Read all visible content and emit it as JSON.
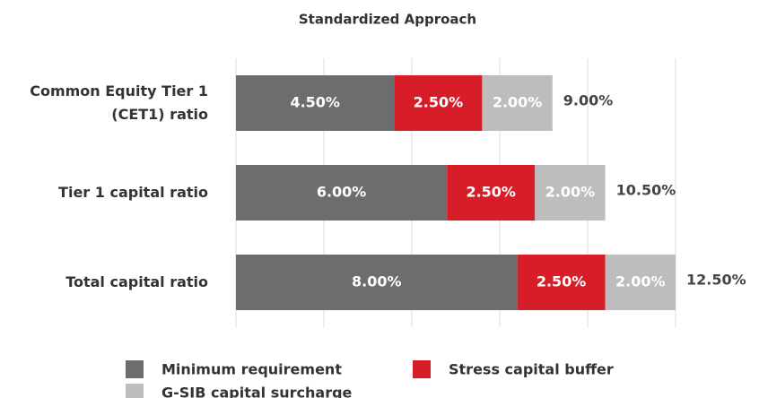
{
  "chart_data": {
    "type": "stacked-bar-horizontal",
    "title": "Standardized Approach",
    "categories": [
      "Common Equity Tier 1 (CET1) ratio",
      "Tier 1 capital ratio",
      "Total capital ratio"
    ],
    "series": [
      {
        "name": "Minimum requirement",
        "color": "#6d6d6d",
        "values": [
          4.5,
          6.0,
          8.0
        ],
        "value_labels": [
          "4.50%",
          "6.00%",
          "8.00%"
        ]
      },
      {
        "name": "Stress capital buffer",
        "color": "#d71e28",
        "values": [
          2.5,
          2.5,
          2.5
        ],
        "value_labels": [
          "2.50%",
          "2.50%",
          "2.50%"
        ]
      },
      {
        "name": "G-SIB capital surcharge",
        "color": "#bdbdbd",
        "values": [
          2.0,
          2.0,
          2.0
        ],
        "value_labels": [
          "2.00%",
          "2.00%",
          "2.00%"
        ]
      }
    ],
    "totals": [
      9.0,
      10.5,
      12.5
    ],
    "total_labels": [
      "9.00%",
      "10.50%",
      "12.50%"
    ],
    "xlim": [
      0,
      12.5
    ],
    "xticks": [
      0,
      2.5,
      5,
      7.5,
      10,
      12.5
    ],
    "grid": true
  }
}
